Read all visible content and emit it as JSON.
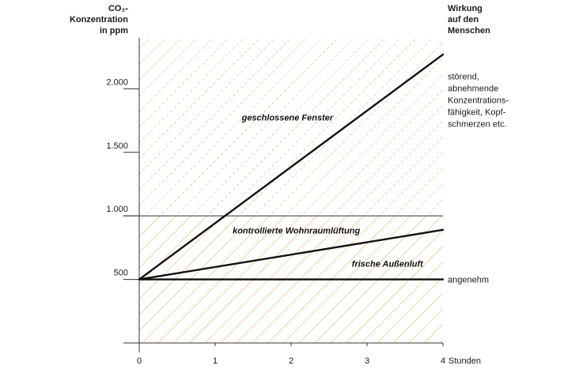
{
  "chart_data": {
    "type": "line",
    "y_title_lines": [
      "CO₂-",
      "Konzentration",
      "in ppm"
    ],
    "right_title_lines": [
      "Wirkung",
      "auf den",
      "Menschen"
    ],
    "x_unit_label": "Stunden",
    "xlim": [
      0,
      4
    ],
    "ylim": [
      0,
      2400
    ],
    "x_ticks": [
      {
        "value": 0,
        "label": "0"
      },
      {
        "value": 1,
        "label": "1"
      },
      {
        "value": 2,
        "label": "2"
      },
      {
        "value": 3,
        "label": "3"
      },
      {
        "value": 4,
        "label": "4"
      }
    ],
    "y_ticks": [
      {
        "value": 500,
        "label": "500"
      },
      {
        "value": 1000,
        "label": "1.000"
      },
      {
        "value": 1500,
        "label": "1.500"
      },
      {
        "value": 2000,
        "label": "2.000"
      }
    ],
    "threshold": 1000,
    "series": [
      {
        "name": "geschlossene Fenster",
        "x": [
          0,
          4
        ],
        "y": [
          500,
          2270
        ]
      },
      {
        "name": "kontrollierte Wohnraumlüftung",
        "x": [
          0,
          4
        ],
        "y": [
          500,
          890
        ]
      },
      {
        "name": "frische Außenluft",
        "x": [
          0,
          4
        ],
        "y": [
          500,
          500
        ]
      }
    ],
    "series_labels": [
      {
        "text": "geschlossene Fenster",
        "x": 1.35,
        "y": 1750
      },
      {
        "text": "kontrollierte Wohnraumlüftung",
        "x": 1.23,
        "y": 860
      },
      {
        "text": "frische Außenluft",
        "x": 2.8,
        "y": 600
      }
    ],
    "effects": [
      {
        "lines": [
          "störend,",
          "abnehmende",
          "Konzentrations-",
          "fähigkeit, Kopf-",
          "schmerzen etc."
        ],
        "y": 2050
      },
      {
        "lines": [
          "angenehm"
        ],
        "y": 500
      }
    ],
    "colors": {
      "hatch": "#f0a04b",
      "line": "#111111",
      "axis": "#333333"
    }
  }
}
